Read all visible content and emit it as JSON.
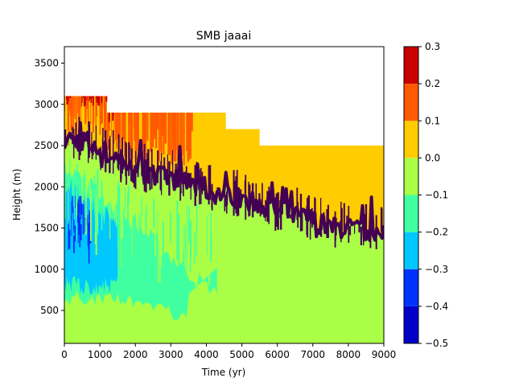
{
  "chart_data": {
    "type": "heatmap",
    "title": "SMB jaaai",
    "xlabel": "Time (yr)",
    "ylabel": "Height (m)",
    "xlim": [
      0,
      9000
    ],
    "ylim": [
      100,
      3700
    ],
    "x_ticks": [
      0,
      1000,
      2000,
      3000,
      4000,
      5000,
      6000,
      7000,
      8000,
      9000
    ],
    "y_ticks": [
      500,
      1000,
      1500,
      2000,
      2500,
      3000,
      3500
    ],
    "colorbar": {
      "levels": [
        -0.5,
        -0.4,
        -0.3,
        -0.2,
        -0.1,
        0.0,
        0.1,
        0.2,
        0.3
      ],
      "tick_labels": [
        "−0.5",
        "−0.4",
        "−0.3",
        "−0.2",
        "−0.1",
        "0.0",
        "0.1",
        "0.2",
        "0.3"
      ],
      "colors": [
        "#0000c8",
        "#0032ff",
        "#00c8ff",
        "#40ffa0",
        "#aaff46",
        "#ffcc00",
        "#ff5a00",
        "#c80000"
      ]
    },
    "surface_top_height": [
      {
        "time": 0,
        "height": 3100
      },
      {
        "time": 1200,
        "height": 3100
      },
      {
        "time": 1200,
        "height": 2900
      },
      {
        "time": 4550,
        "height": 2900
      },
      {
        "time": 4550,
        "height": 2700
      },
      {
        "time": 5500,
        "height": 2700
      },
      {
        "time": 5500,
        "height": 2500
      },
      {
        "time": 9000,
        "height": 2500
      }
    ],
    "equilibrium_line_height": [
      {
        "time": 0,
        "height": 2600
      },
      {
        "time": 500,
        "height": 2550
      },
      {
        "time": 1000,
        "height": 2450
      },
      {
        "time": 1500,
        "height": 2300
      },
      {
        "time": 2000,
        "height": 2200
      },
      {
        "time": 2500,
        "height": 2150
      },
      {
        "time": 3000,
        "height": 2100
      },
      {
        "time": 3500,
        "height": 2050
      },
      {
        "time": 4000,
        "height": 1950
      },
      {
        "time": 4500,
        "height": 1900
      },
      {
        "time": 5000,
        "height": 1850
      },
      {
        "time": 5500,
        "height": 1800
      },
      {
        "time": 6000,
        "height": 1700
      },
      {
        "time": 6500,
        "height": 1650
      },
      {
        "time": 7000,
        "height": 1600
      },
      {
        "time": 7500,
        "height": 1500
      },
      {
        "time": 8000,
        "height": 1500
      },
      {
        "time": 8500,
        "height": 1450
      },
      {
        "time": 9000,
        "height": 1500
      }
    ]
  }
}
